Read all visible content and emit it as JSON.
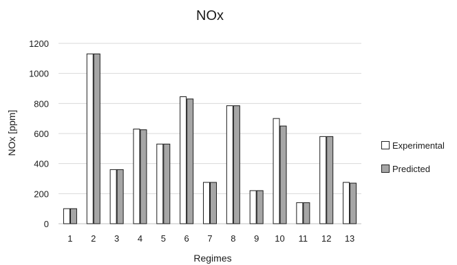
{
  "chart_data": {
    "type": "bar",
    "title": "NOx",
    "xlabel": "Regimes",
    "ylabel": "NOx [ppm]",
    "ylim": [
      0,
      1200
    ],
    "yticks": [
      0,
      200,
      400,
      600,
      800,
      1000,
      1200
    ],
    "categories": [
      "1",
      "2",
      "3",
      "4",
      "5",
      "6",
      "7",
      "8",
      "9",
      "10",
      "11",
      "12",
      "13"
    ],
    "series": [
      {
        "name": "Experimental",
        "color": "#ffffff",
        "values": [
          100,
          1130,
          360,
          630,
          530,
          845,
          275,
          785,
          220,
          700,
          140,
          580,
          275
        ]
      },
      {
        "name": "Predicted",
        "color": "#a6a6a6",
        "values": [
          100,
          1130,
          360,
          625,
          530,
          830,
          275,
          785,
          220,
          650,
          140,
          580,
          270
        ]
      }
    ],
    "grid": true,
    "legend_position": "right"
  }
}
